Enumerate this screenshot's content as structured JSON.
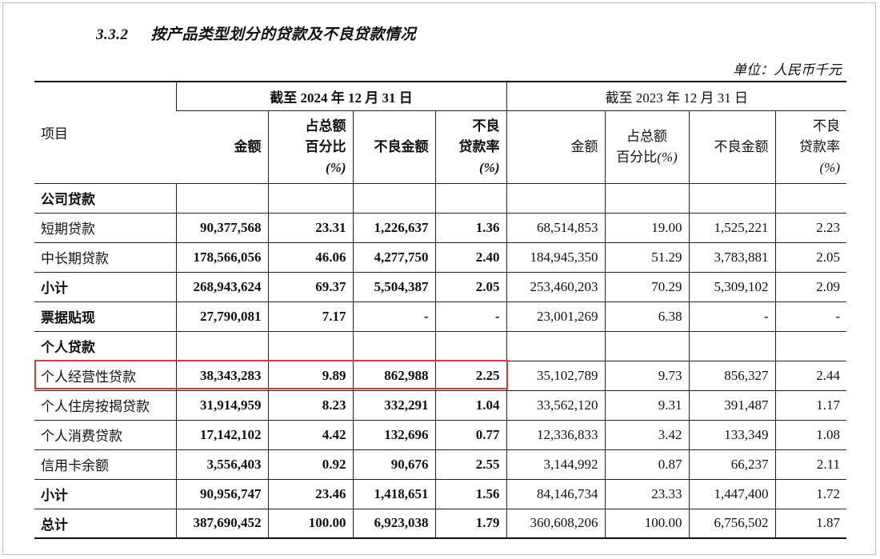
{
  "heading": {
    "number": "3.3.2",
    "title": "按产品类型划分的贷款及不良贷款情况"
  },
  "unit": "单位：人民币千元",
  "table": {
    "item_header": "项目",
    "period_2024": "截至 2024 年 12 月 31 日",
    "period_2023": "截至 2023 年 12 月 31 日",
    "col_2024": {
      "amount": "金额",
      "share_l1": "占总额",
      "share_l2": "百分比",
      "share_l3": "(%)",
      "npl_amount": "不良金额",
      "npl_rate_l1": "不良",
      "npl_rate_l2": "贷款率",
      "npl_rate_l3": "(%)"
    },
    "col_2023": {
      "amount": "金额",
      "share_l1": "占总额",
      "share_l2": "百分比",
      "share_l3": "(%)",
      "npl_amount": "不良金额",
      "npl_rate_l1": "不良",
      "npl_rate_l2": "贷款率",
      "npl_rate_l3": "(%)"
    },
    "rows": [
      {
        "label": "公司贷款",
        "bold_label": true,
        "section": true,
        "values": [
          "",
          "",
          "",
          "",
          "",
          "",
          "",
          ""
        ]
      },
      {
        "label": "短期贷款",
        "bold_label": false,
        "values": [
          "90,377,568",
          "23.31",
          "1,226,637",
          "1.36",
          "68,514,853",
          "19.00",
          "1,525,221",
          "2.23"
        ]
      },
      {
        "label": "中长期贷款",
        "bold_label": false,
        "values": [
          "178,566,056",
          "46.06",
          "4,277,750",
          "2.40",
          "184,945,350",
          "51.29",
          "3,783,881",
          "2.05"
        ]
      },
      {
        "label": "小计",
        "bold_label": true,
        "values": [
          "268,943,624",
          "69.37",
          "5,504,387",
          "2.05",
          "253,460,203",
          "70.29",
          "5,309,102",
          "2.09"
        ]
      },
      {
        "label": "票据贴现",
        "bold_label": true,
        "values": [
          "27,790,081",
          "7.17",
          "-",
          "-",
          "23,001,269",
          "6.38",
          "-",
          "-"
        ]
      },
      {
        "label": "个人贷款",
        "bold_label": true,
        "section": true,
        "values": [
          "",
          "",
          "",
          "",
          "",
          "",
          "",
          ""
        ]
      },
      {
        "label": "个人经营性贷款",
        "bold_label": false,
        "highlighted": true,
        "values": [
          "38,343,283",
          "9.89",
          "862,988",
          "2.25",
          "35,102,789",
          "9.73",
          "856,327",
          "2.44"
        ]
      },
      {
        "label": "个人住房按揭贷款",
        "bold_label": false,
        "values": [
          "31,914,959",
          "8.23",
          "332,291",
          "1.04",
          "33,562,120",
          "9.31",
          "391,487",
          "1.17"
        ]
      },
      {
        "label": "个人消费贷款",
        "bold_label": false,
        "values": [
          "17,142,102",
          "4.42",
          "132,696",
          "0.77",
          "12,336,833",
          "3.42",
          "133,349",
          "1.08"
        ]
      },
      {
        "label": "信用卡余额",
        "bold_label": false,
        "values": [
          "3,556,403",
          "0.92",
          "90,676",
          "2.55",
          "3,144,992",
          "0.87",
          "66,237",
          "2.11"
        ]
      },
      {
        "label": "小计",
        "bold_label": true,
        "values": [
          "90,956,747",
          "23.46",
          "1,418,651",
          "1.56",
          "84,146,734",
          "23.33",
          "1,447,400",
          "1.72"
        ]
      },
      {
        "label": "总计",
        "bold_label": true,
        "values": [
          "387,690,452",
          "100.00",
          "6,923,038",
          "1.79",
          "360,608,206",
          "100.00",
          "6,756,502",
          "1.87"
        ]
      }
    ]
  },
  "colors": {
    "border": "#222222",
    "highlight": "#d9363e",
    "frame": "#bdbdbd"
  }
}
